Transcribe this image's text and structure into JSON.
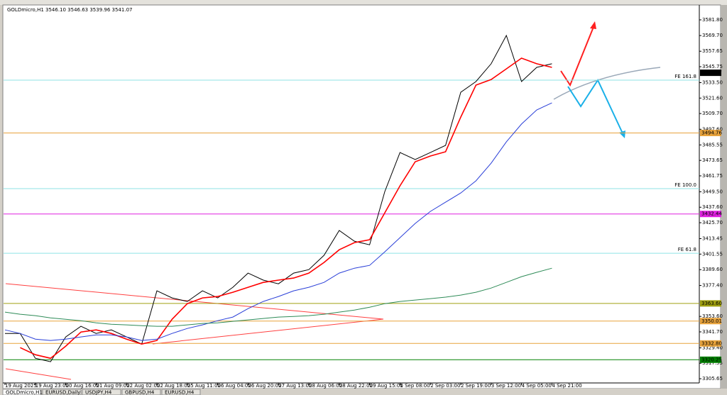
{
  "window": {
    "tabs": [
      "GOLDmicro,H1",
      "EURUSD,Daily",
      "USDJPY,H4",
      "GBPUSD,H4",
      "EURUSD,H4"
    ]
  },
  "chart_data": {
    "type": "line",
    "title": "GOLDmicro,H1  3546.10 3546.63 3539.96 3541.07",
    "categories": [
      "19 Aug 2025",
      null,
      "19 Aug 23:00",
      null,
      "20 Aug 16:00",
      null,
      "21 Aug 09:00",
      null,
      "22 Aug 02:00",
      null,
      "22 Aug 18:00",
      null,
      "25 Aug 11:00",
      null,
      "26 Aug 04:00",
      null,
      "26 Aug 20:00",
      null,
      "27 Aug 13:00",
      null,
      "28 Aug 06:00",
      null,
      "28 Aug 22:00",
      null,
      "29 Aug 15:00",
      null,
      "1 Sep 08:00",
      null,
      "2 Sep 03:00",
      null,
      "2 Sep 19:00",
      null,
      "3 Sep 12:00",
      null,
      "4 Sep 05:00",
      null,
      "4 Sep 21:00"
    ],
    "series": [
      {
        "color": "#000000",
        "width": 1,
        "values": [
          3340.5,
          3340.5,
          3321.4,
          3318.7,
          3337.8,
          3346.0,
          3340.5,
          3343.2,
          3337.8,
          3332.3,
          3373.3,
          3367.8,
          3365.1,
          3373.3,
          3367.8,
          3376.0,
          3386.9,
          3381.5,
          3378.7,
          3386.9,
          3389.6,
          3400.6,
          3419.7,
          3411.5,
          3408.7,
          3449.7,
          3479.7,
          3474.3,
          3479.7,
          3485.2,
          3526.1,
          3534.3,
          3548.0,
          3569.8,
          3534.3,
          3545.2,
          3548.0
        ]
      },
      {
        "color": "#ff0000",
        "width": 1.6,
        "values": [
          null,
          3329.6,
          3324.1,
          3321.4,
          3330.7,
          3341.6,
          3343.2,
          3340.5,
          3336.1,
          3332.3,
          3335.1,
          3351.4,
          3363.4,
          3367.8,
          3368.9,
          3372.2,
          3376.0,
          3379.8,
          3381.5,
          3383.1,
          3386.9,
          3395.1,
          3404.9,
          3410.4,
          3412.6,
          3433.3,
          3454.1,
          3472.6,
          3477.0,
          3480.3,
          3507.0,
          3531.6,
          3535.9,
          3544.1,
          3552.3,
          3548.0,
          3545.2
        ]
      },
      {
        "color": "#2a3fd8",
        "width": 1,
        "values": [
          3343.2,
          3340.5,
          3336.1,
          3335.1,
          3336.1,
          3337.8,
          3339.4,
          3339.4,
          3337.8,
          3335.1,
          3336.1,
          3340.5,
          3344.3,
          3347.1,
          3350.3,
          3353.1,
          3359.6,
          3365.1,
          3368.9,
          3373.3,
          3376.0,
          3379.8,
          3386.9,
          3390.7,
          3392.9,
          3403.3,
          3414.2,
          3425.1,
          3434.4,
          3441.5,
          3448.6,
          3457.9,
          3471.5,
          3487.9,
          3501.6,
          3512.5,
          3517.9
        ]
      },
      {
        "color": "#2e8b57",
        "width": 1,
        "values": [
          3356.9,
          3355.3,
          3354.2,
          3352.5,
          3351.4,
          3350.3,
          3348.7,
          3347.6,
          3347.1,
          3346.5,
          3346.0,
          3346.0,
          3347.1,
          3348.2,
          3348.7,
          3349.8,
          3350.9,
          3352.0,
          3353.1,
          3353.6,
          3354.2,
          3355.3,
          3356.9,
          3358.5,
          3360.7,
          3363.4,
          3365.1,
          3366.2,
          3367.3,
          3368.4,
          3370.0,
          3372.2,
          3375.4,
          3379.8,
          3384.2,
          3387.5,
          3390.7
        ]
      }
    ],
    "ylim": [
      3302.4,
      3592.7
    ],
    "yticks": [
      {
        "value": 3581.8,
        "label": "3581.80"
      },
      {
        "value": 3569.7,
        "label": "3569.70"
      },
      3557.65,
      3545.75,
      {
        "value": 3533.5,
        "label": "3533.50"
      },
      {
        "value": 3521.6,
        "label": "3521.60"
      },
      {
        "value": 3509.7,
        "label": "3509.70"
      },
      {
        "value": 3497.6,
        "label": "3497.60"
      },
      3485.55,
      3473.65,
      3461.75,
      {
        "value": 3449.5,
        "label": "3449.50"
      },
      {
        "value": 3437.6,
        "label": "3437.60"
      },
      {
        "value": 3425.7,
        "label": "3425.70"
      },
      3413.45,
      3401.55,
      {
        "value": 3389.6,
        "label": "3389.60"
      },
      {
        "value": 3377.4,
        "label": "3377.40"
      },
      {
        "value": 3353.6,
        "label": "3353.60"
      },
      {
        "value": 3341.7,
        "label": "3341.70"
      },
      {
        "value": 3329.4,
        "label": "3329.40"
      },
      3317.55,
      3305.65
    ],
    "levels": [
      {
        "value": 3541.07,
        "color": "#000000",
        "line": false,
        "box": true
      },
      {
        "value": 3535.4,
        "label": "FE 161.8",
        "color": "#8fe3e6",
        "line": true,
        "box": false
      },
      {
        "value": 3494.76,
        "color": "#e8a33c",
        "line": true,
        "box": true
      },
      {
        "value": 3451.9,
        "label": "FE 100.0",
        "color": "#8fe3e6",
        "line": true,
        "box": false
      },
      {
        "value": 3432.44,
        "color": "#e020e0",
        "line": true,
        "box": true
      },
      {
        "value": 3402.2,
        "label": "FE 61.8",
        "color": "#8fe3e6",
        "line": true,
        "box": false
      },
      {
        "value": 3363.6,
        "label": "3363.60",
        "color": "#a0a010",
        "line": true,
        "box": true
      },
      {
        "value": 3350.01,
        "color": "#e8a33c",
        "line": true,
        "box": true
      },
      {
        "value": 3332.8,
        "label": "3332.80",
        "color": "#e8a33c",
        "line": true,
        "box": true
      },
      {
        "value": 3320.25,
        "color": "#008000",
        "line": true,
        "box": true
      }
    ]
  }
}
